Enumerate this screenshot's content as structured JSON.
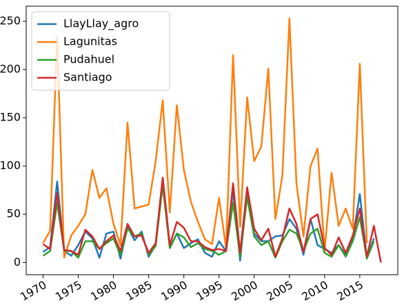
{
  "chart_data": {
    "type": "line",
    "x": [
      1970,
      1971,
      1972,
      1973,
      1974,
      1975,
      1976,
      1977,
      1978,
      1979,
      1980,
      1981,
      1982,
      1983,
      1984,
      1985,
      1986,
      1987,
      1988,
      1989,
      1990,
      1991,
      1992,
      1993,
      1994,
      1995,
      1996,
      1997,
      1998,
      1999,
      2000,
      2001,
      2002,
      2003,
      2004,
      2005,
      2006,
      2007,
      2008,
      2009,
      2010,
      2011,
      2012,
      2013,
      2014,
      2015,
      2016,
      2017,
      2018
    ],
    "series": [
      {
        "name": "LlayLlay_agro",
        "color": "#1f77b4",
        "values": [
          11,
          16,
          84,
          12,
          7,
          18,
          32,
          25,
          5,
          30,
          32,
          4,
          37,
          23,
          32,
          6,
          18,
          87,
          15,
          30,
          15,
          20,
          24,
          10,
          6,
          22,
          12,
          75,
          2,
          75,
          30,
          22,
          22,
          27,
          28,
          45,
          35,
          8,
          45,
          18,
          14,
          10,
          18,
          8,
          25,
          71,
          5,
          25,
          null
        ]
      },
      {
        "name": "Lagunitas",
        "color": "#ff7f0e",
        "values": [
          20,
          33,
          235,
          5,
          28,
          38,
          50,
          96,
          67,
          77,
          40,
          18,
          145,
          56,
          58,
          60,
          105,
          168,
          52,
          163,
          96,
          63,
          42,
          24,
          19,
          67,
          15,
          215,
          37,
          171,
          105,
          120,
          201,
          45,
          90,
          253,
          82,
          27,
          100,
          118,
          12,
          93,
          38,
          56,
          35,
          206,
          20,
          null,
          null
        ]
      },
      {
        "name": "Pudahuel",
        "color": "#2ca02c",
        "values": [
          7,
          12,
          62,
          12,
          12,
          5,
          22,
          22,
          14,
          20,
          25,
          8,
          35,
          27,
          30,
          8,
          17,
          80,
          15,
          30,
          26,
          16,
          20,
          14,
          12,
          8,
          12,
          62,
          6,
          68,
          27,
          18,
          22,
          5,
          22,
          34,
          30,
          12,
          30,
          35,
          10,
          6,
          18,
          6,
          22,
          47,
          4,
          22,
          null
        ]
      },
      {
        "name": "Santiago",
        "color": "#d62728",
        "values": [
          19,
          14,
          72,
          13,
          12,
          8,
          34,
          27,
          14,
          22,
          28,
          12,
          40,
          27,
          28,
          10,
          20,
          88,
          18,
          42,
          36,
          22,
          22,
          16,
          13,
          14,
          12,
          82,
          10,
          78,
          35,
          23,
          35,
          6,
          25,
          56,
          40,
          11,
          45,
          50,
          15,
          8,
          26,
          10,
          28,
          56,
          6,
          38,
          0
        ]
      }
    ],
    "xlim": [
      1967.6,
      2020.4
    ],
    "ylim": [
      -12.65,
      265.65
    ],
    "xticks": [
      1970,
      1975,
      1980,
      1985,
      1990,
      1995,
      2000,
      2005,
      2010,
      2015
    ],
    "yticks": [
      0,
      50,
      100,
      150,
      200,
      250
    ],
    "legend": "upper left"
  }
}
